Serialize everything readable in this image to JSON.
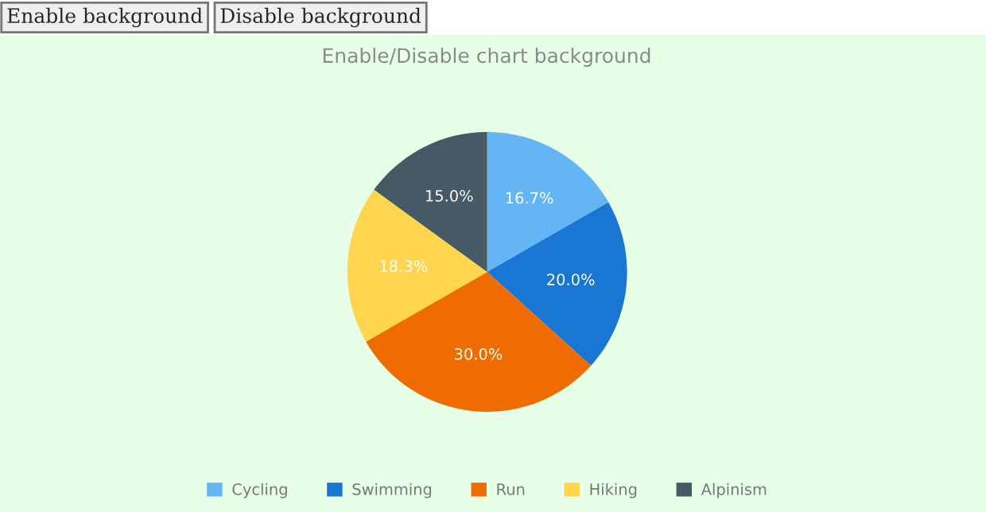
{
  "chart_data": {
    "type": "pie",
    "title": "Enable/Disable chart background",
    "categories": [
      "Cycling",
      "Swimming",
      "Run",
      "Hiking",
      "Alpinism"
    ],
    "values": [
      16.7,
      20.0,
      30.0,
      18.3,
      15.0
    ],
    "colors": [
      "#64b5f6",
      "#1976d2",
      "#ef6c00",
      "#ffd54f",
      "#455a64"
    ],
    "value_labels": [
      "16.7%",
      "20.0%",
      "30.0%",
      "18.3%",
      "15.0%"
    ],
    "legend": "bottom",
    "annotations": [
      "Enable background",
      "Disable background"
    ]
  }
}
